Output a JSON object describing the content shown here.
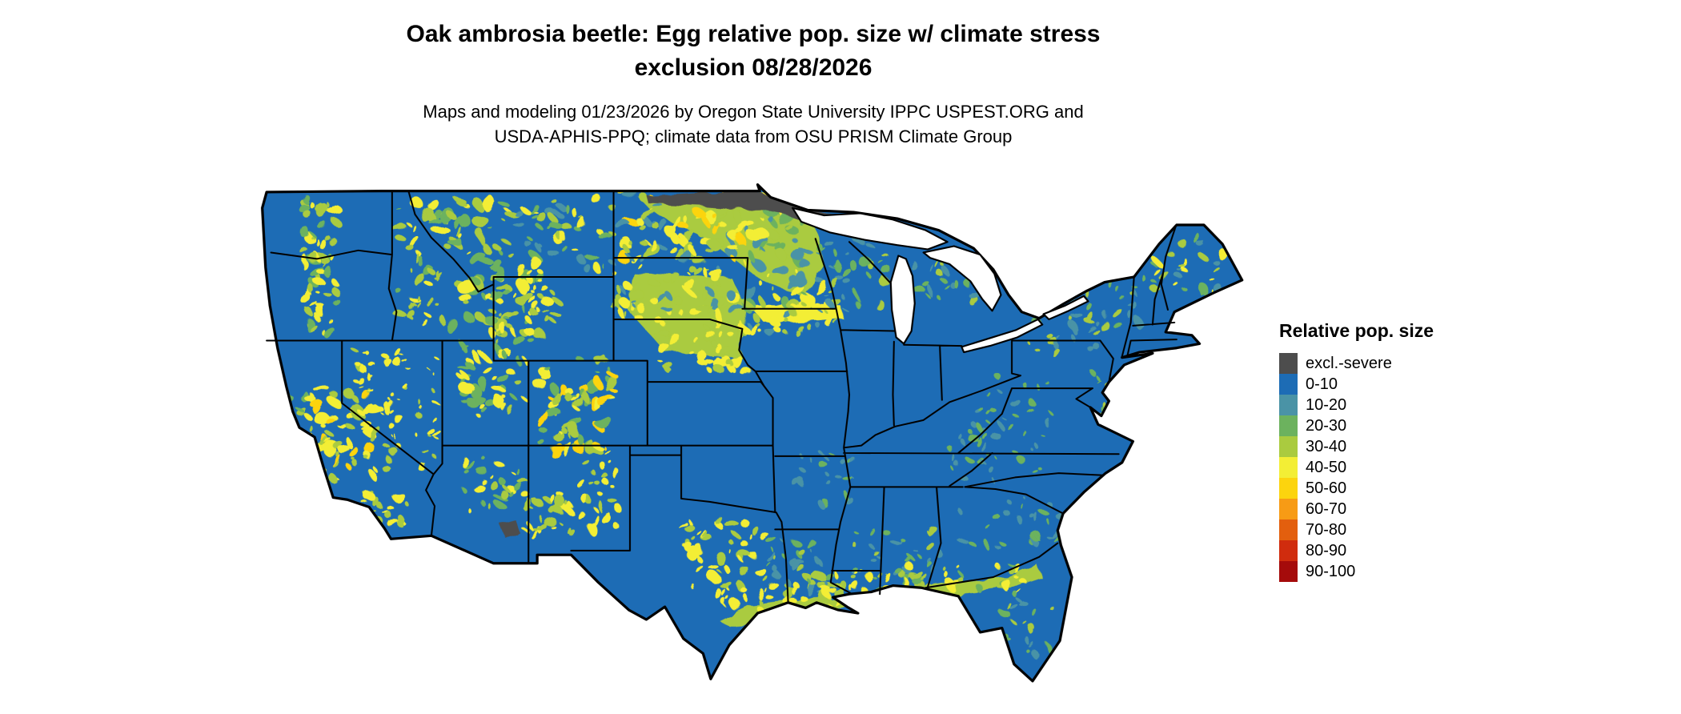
{
  "title": {
    "line1": "Oak ambrosia beetle: Egg relative pop. size w/ climate stress",
    "line2": "exclusion 08/28/2026"
  },
  "subtitle": {
    "line1": "Maps and modeling 01/23/2026 by Oregon State University IPPC USPEST.ORG and",
    "line2": "USDA-APHIS-PPQ; climate data from OSU PRISM Climate Group"
  },
  "legend": {
    "title": "Relative pop. size",
    "items": [
      {
        "label": "excl.-severe",
        "color": "#4d4d4d"
      },
      {
        "label": "0-10",
        "color": "#1d6cb5"
      },
      {
        "label": "10-20",
        "color": "#4a93a6"
      },
      {
        "label": "20-30",
        "color": "#6cb25e"
      },
      {
        "label": "30-40",
        "color": "#aacb3f"
      },
      {
        "label": "40-50",
        "color": "#f3ee35"
      },
      {
        "label": "50-60",
        "color": "#fcd40e"
      },
      {
        "label": "60-70",
        "color": "#f79b15"
      },
      {
        "label": "70-80",
        "color": "#e35f0e"
      },
      {
        "label": "80-90",
        "color": "#d02c0e"
      },
      {
        "label": "90-100",
        "color": "#a50b0b"
      }
    ]
  },
  "map": {
    "base_range": "0-10",
    "water_color": "#ffffff",
    "border_color": "#000000"
  }
}
